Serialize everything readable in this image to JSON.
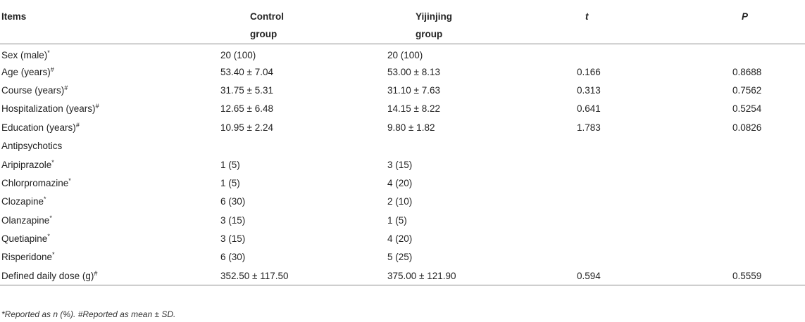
{
  "header": {
    "items": "Items",
    "control_line1": "Control",
    "control_line2": "group",
    "yijinjing_line1": "Yijinjing",
    "yijinjing_line2": "group",
    "t": "t",
    "p": "P"
  },
  "rows": [
    {
      "name": "Sex (male)",
      "mark": "*",
      "control": "20 (100)",
      "yijinjing": "20 (100)",
      "t": "",
      "p": ""
    },
    {
      "name": "Age (years)",
      "mark": "#",
      "control": "53.40 ± 7.04",
      "yijinjing": "53.00 ± 8.13",
      "t": "0.166",
      "p": "0.8688"
    },
    {
      "name": "Course (years)",
      "mark": "#",
      "control": "31.75 ± 5.31",
      "yijinjing": "31.10 ± 7.63",
      "t": "0.313",
      "p": "0.7562"
    },
    {
      "name": "Hospitalization (years)",
      "mark": "#",
      "control": "12.65 ± 6.48",
      "yijinjing": "14.15 ± 8.22",
      "t": "0.641",
      "p": "0.5254"
    },
    {
      "name": "Education (years)",
      "mark": "#",
      "control": "10.95 ± 2.24",
      "yijinjing": "9.80 ± 1.82",
      "t": "1.783",
      "p": "0.0826"
    },
    {
      "name": "Antipsychotics",
      "mark": "",
      "control": "",
      "yijinjing": "",
      "t": "",
      "p": ""
    },
    {
      "name": "Aripiprazole",
      "mark": "*",
      "control": "1 (5)",
      "yijinjing": "3 (15)",
      "t": "",
      "p": ""
    },
    {
      "name": "Chlorpromazine",
      "mark": "*",
      "control": "1 (5)",
      "yijinjing": "4 (20)",
      "t": "",
      "p": ""
    },
    {
      "name": "Clozapine",
      "mark": "*",
      "control": "6 (30)",
      "yijinjing": "2 (10)",
      "t": "",
      "p": ""
    },
    {
      "name": "Olanzapine",
      "mark": "*",
      "control": "3 (15)",
      "yijinjing": "1 (5)",
      "t": "",
      "p": ""
    },
    {
      "name": "Quetiapine",
      "mark": "*",
      "control": "3 (15)",
      "yijinjing": "4 (20)",
      "t": "",
      "p": ""
    },
    {
      "name": "Risperidone",
      "mark": "*",
      "control": "6 (30)",
      "yijinjing": "5 (25)",
      "t": "",
      "p": ""
    },
    {
      "name": "Defined daily dose (g)",
      "mark": "#",
      "control": "352.50 ± 117.50",
      "yijinjing": "375.00 ± 121.90",
      "t": "0.594",
      "p": "0.5559"
    }
  ],
  "footnote": "*Reported as n (%). #Reported as mean ± SD."
}
